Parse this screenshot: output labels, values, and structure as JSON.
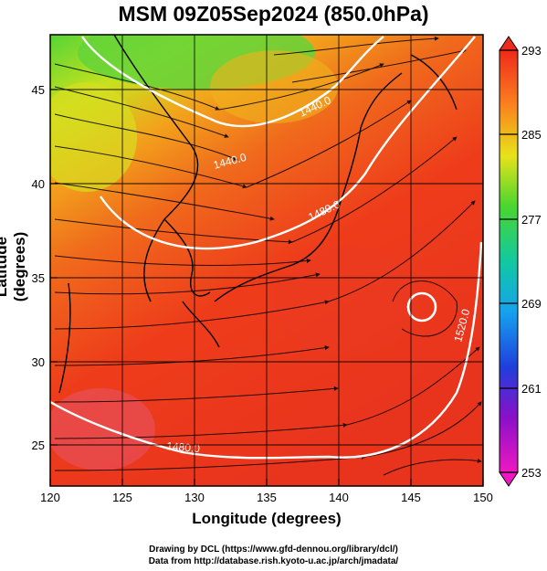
{
  "title": "MSM 09Z05Sep2024 (850.0hPa)",
  "x_axis": {
    "label": "Longitude (degrees)",
    "ticks": [
      "120",
      "125",
      "130",
      "135",
      "140",
      "145",
      "150"
    ]
  },
  "y_axis": {
    "label": "Latitude  (degrees)",
    "ticks": [
      "25",
      "30",
      "35",
      "40",
      "45"
    ]
  },
  "colorbar": {
    "ticks": [
      "293",
      "285",
      "277",
      "269",
      "261",
      "253"
    ],
    "min": 253,
    "max": 293
  },
  "contour_labels": [
    "1440.0",
    "1440.0",
    "1480.0",
    "1520.0",
    "1480.0"
  ],
  "credits": {
    "line1": "Drawing by DCL (https://www.gfd-dennou.org/library/dcl/)",
    "line2": "Data from http://database.rish.kyoto-u.ac.jp/arch/jmadata/"
  },
  "chart_data": {
    "type": "heatmap",
    "title": "MSM 09Z05Sep2024 (850.0hPa)",
    "xlabel": "Longitude (degrees)",
    "ylabel": "Latitude  (degrees)",
    "xlim": [
      120,
      150
    ],
    "ylim": [
      22.4,
      47.6
    ],
    "colorbar_range": [
      253,
      293
    ],
    "contour_levels": [
      1440,
      1480,
      1520
    ]
  }
}
